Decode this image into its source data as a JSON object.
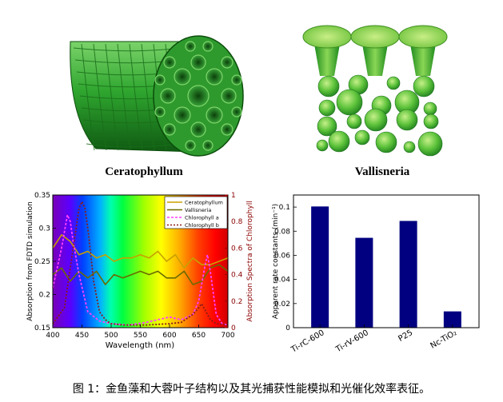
{
  "labels": {
    "ceratophyllum": "Ceratophyllum",
    "vallisneria": "Vallisneria"
  },
  "caption": "图 1：金鱼藻和大蓉叶子结构以及其光捕获性能模拟和光催化效率表征。",
  "colors": {
    "tube_green": "#2aa52a",
    "leaf_green": "#8fd24a",
    "bar_navy": "#000080",
    "ceratophyllum_line": "#c8a000",
    "vallisneria_line": "#6b6b00",
    "chlorophyll_a_line": "#ff40ff",
    "chlorophyll_b_line": "#8b1a1a",
    "right_axis": "#8b0000"
  },
  "chart_data": [
    {
      "type": "line",
      "xlabel": "Wavelength (nm)",
      "ylabel_left": "Absorption from FDTD simulation",
      "ylabel_right": "Absorption Spectra of Chlorophyll",
      "xlim": [
        400,
        700
      ],
      "ylim_left": [
        0.15,
        0.35
      ],
      "ylim_right": [
        0,
        1
      ],
      "xticks": [
        "400",
        "450",
        "500",
        "550",
        "600",
        "650",
        "700"
      ],
      "yticks_left": [
        "0.15",
        "0.2",
        "0.25",
        "0.3",
        "0.35"
      ],
      "yticks_right": [
        "0",
        "0.2",
        "0.4",
        "0.6",
        "0.8",
        "1"
      ],
      "background": "visible spectrum gradient",
      "legend_position": "top-right",
      "series": [
        {
          "name": "Ceratophyllum",
          "axis": "left",
          "x": [
            400,
            415,
            430,
            445,
            460,
            475,
            490,
            505,
            520,
            535,
            550,
            565,
            580,
            595,
            610,
            625,
            640,
            655,
            670,
            685,
            700
          ],
          "y": [
            0.27,
            0.29,
            0.28,
            0.26,
            0.265,
            0.255,
            0.26,
            0.25,
            0.255,
            0.255,
            0.26,
            0.255,
            0.265,
            0.25,
            0.26,
            0.24,
            0.255,
            0.245,
            0.245,
            0.25,
            0.255
          ]
        },
        {
          "name": "Vallisneria",
          "axis": "left",
          "x": [
            400,
            415,
            430,
            445,
            460,
            475,
            490,
            505,
            520,
            535,
            550,
            565,
            580,
            595,
            610,
            625,
            640,
            655,
            670,
            685,
            700
          ],
          "y": [
            0.23,
            0.24,
            0.22,
            0.235,
            0.225,
            0.235,
            0.215,
            0.23,
            0.225,
            0.23,
            0.235,
            0.23,
            0.235,
            0.225,
            0.225,
            0.235,
            0.215,
            0.22,
            0.24,
            0.245,
            0.235
          ]
        },
        {
          "name": "Chlorophyll a",
          "axis": "right",
          "x": [
            400,
            415,
            425,
            430,
            435,
            445,
            460,
            480,
            500,
            530,
            560,
            580,
            600,
            620,
            640,
            650,
            660,
            665,
            670,
            680,
            690,
            700
          ],
          "y": [
            0.3,
            0.6,
            0.85,
            0.8,
            0.65,
            0.4,
            0.12,
            0.05,
            0.03,
            0.02,
            0.04,
            0.06,
            0.08,
            0.06,
            0.1,
            0.2,
            0.45,
            0.55,
            0.42,
            0.1,
            0.03,
            0.02
          ]
        },
        {
          "name": "Chlorophyll b",
          "axis": "right",
          "x": [
            400,
            420,
            435,
            445,
            450,
            455,
            460,
            465,
            470,
            480,
            490,
            500,
            520,
            560,
            600,
            620,
            640,
            650,
            655,
            660,
            670,
            680,
            700
          ],
          "y": [
            0.03,
            0.15,
            0.6,
            0.9,
            0.95,
            0.9,
            0.75,
            0.55,
            0.35,
            0.12,
            0.06,
            0.03,
            0.02,
            0.02,
            0.03,
            0.04,
            0.1,
            0.15,
            0.18,
            0.14,
            0.06,
            0.03,
            0.02
          ]
        }
      ]
    },
    {
      "type": "bar",
      "ylabel": "Apparent rate constants (min⁻¹)",
      "ylim": [
        0,
        0.11
      ],
      "yticks": [
        "0",
        "0.02",
        "0.04",
        "0.06",
        "0.08",
        "0.1"
      ],
      "categories": [
        "Ti-rC-600",
        "Ti-rV-600",
        "P25",
        "Nc-TiO₂"
      ],
      "values": [
        0.1005,
        0.0745,
        0.0885,
        0.0135
      ]
    }
  ]
}
